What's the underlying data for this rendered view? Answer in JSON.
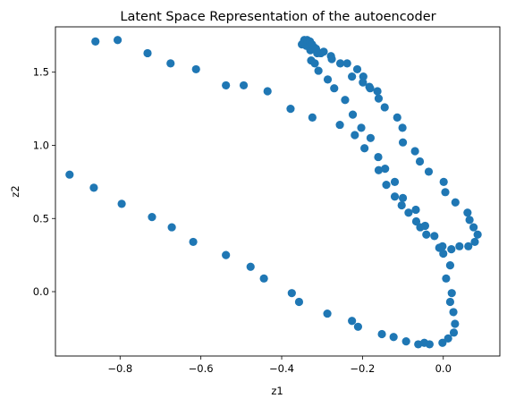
{
  "chart_data": {
    "type": "scatter",
    "title": "Latent Space Representation of the autoencoder",
    "xlabel": "z1",
    "ylabel": "z2",
    "xlim": [
      -0.96,
      0.14
    ],
    "ylim": [
      -0.44,
      1.81
    ],
    "xticks": [
      -0.8,
      -0.6,
      -0.4,
      -0.2,
      0.0
    ],
    "xtick_labels": [
      "−0.8",
      "−0.6",
      "−0.4",
      "−0.2",
      "0.0"
    ],
    "yticks": [
      0.0,
      0.5,
      1.0,
      1.5
    ],
    "ytick_labels": [
      "0.0",
      "0.5",
      "1.0",
      "1.5"
    ],
    "grid": false,
    "legend": "none",
    "marker_color": "#1f77b4",
    "series": [
      {
        "x": [
          -0.925,
          -0.865,
          -0.796,
          -0.721,
          -0.672,
          -0.619,
          -0.538,
          -0.477,
          -0.444,
          -0.375,
          -0.357,
          -0.287,
          -0.226,
          -0.211,
          -0.152,
          -0.123,
          -0.092,
          -0.062,
          -0.047,
          -0.034,
          -0.002,
          0.012,
          0.026,
          0.029,
          0.025,
          0.017,
          0.021,
          0.007,
          0.017,
          0.0,
          -0.01,
          -0.042,
          -0.057,
          -0.067,
          -0.086,
          -0.103,
          -0.12,
          -0.141,
          -0.16,
          -0.195,
          -0.219,
          -0.256,
          -0.324,
          -0.378,
          -0.435,
          -0.494,
          -0.538,
          -0.612,
          -0.675,
          -0.732,
          -0.806,
          -0.861,
          -0.344,
          -0.336,
          -0.329,
          -0.32,
          -0.312,
          -0.327,
          -0.318,
          -0.309,
          -0.286,
          -0.27,
          -0.243,
          -0.224,
          -0.203,
          -0.18,
          -0.161,
          -0.144,
          -0.12,
          -0.1,
          -0.068,
          -0.045,
          -0.022,
          -0.002,
          0.02,
          0.04,
          0.062,
          0.078,
          0.085,
          0.075,
          0.065,
          0.06,
          0.03,
          0.005,
          0.001,
          -0.036,
          -0.058,
          -0.07,
          -0.1,
          -0.101,
          -0.114,
          -0.145,
          -0.16,
          -0.183,
          -0.198,
          -0.213,
          -0.238,
          -0.278,
          -0.303,
          -0.329,
          -0.339,
          -0.35,
          -0.345,
          -0.337,
          -0.33,
          -0.325,
          -0.315,
          -0.296,
          -0.276,
          -0.255,
          -0.226,
          -0.199,
          -0.181,
          -0.163
        ],
        "y": [
          0.8,
          0.71,
          0.6,
          0.51,
          0.44,
          0.34,
          0.25,
          0.17,
          0.09,
          -0.01,
          -0.07,
          -0.15,
          -0.2,
          -0.24,
          -0.29,
          -0.31,
          -0.34,
          -0.36,
          -0.35,
          -0.36,
          -0.35,
          -0.32,
          -0.28,
          -0.22,
          -0.14,
          -0.07,
          -0.01,
          0.09,
          0.18,
          0.26,
          0.3,
          0.39,
          0.44,
          0.48,
          0.54,
          0.59,
          0.65,
          0.73,
          0.83,
          0.98,
          1.07,
          1.14,
          1.19,
          1.25,
          1.37,
          1.41,
          1.41,
          1.52,
          1.56,
          1.63,
          1.72,
          1.71,
          1.72,
          1.7,
          1.7,
          1.67,
          1.63,
          1.58,
          1.56,
          1.51,
          1.45,
          1.39,
          1.31,
          1.21,
          1.12,
          1.05,
          0.92,
          0.84,
          0.75,
          0.64,
          0.56,
          0.45,
          0.38,
          0.31,
          0.29,
          0.31,
          0.31,
          0.34,
          0.39,
          0.44,
          0.49,
          0.54,
          0.61,
          0.68,
          0.75,
          0.82,
          0.89,
          0.96,
          1.02,
          1.12,
          1.19,
          1.26,
          1.32,
          1.4,
          1.47,
          1.52,
          1.56,
          1.61,
          1.63,
          1.65,
          1.68,
          1.69,
          1.71,
          1.72,
          1.71,
          1.69,
          1.66,
          1.64,
          1.59,
          1.56,
          1.47,
          1.43,
          1.39,
          1.37
        ]
      }
    ]
  }
}
